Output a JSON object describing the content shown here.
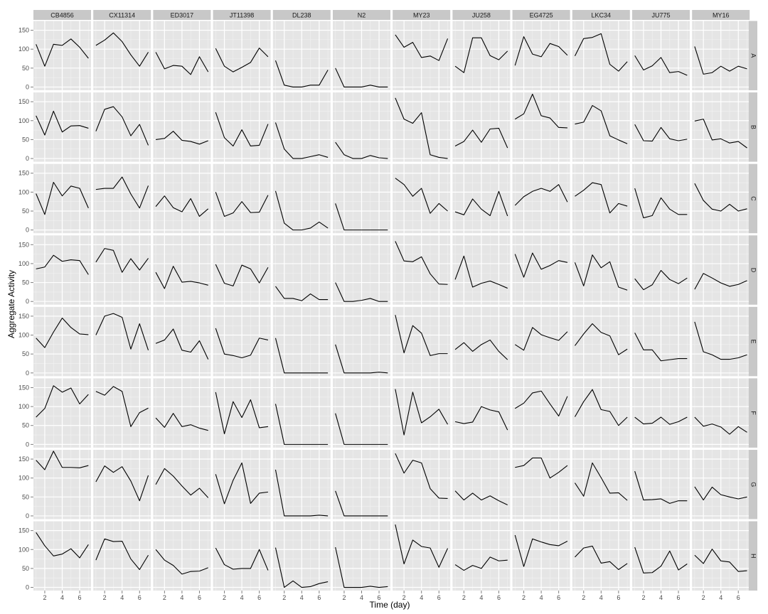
{
  "chart_data": {
    "type": "line",
    "xlabel": "Time (day)",
    "ylabel": "Aggregate Activity",
    "xlim": [
      1,
      7
    ],
    "ylim": [
      0,
      150
    ],
    "x_ticks": [
      2,
      4,
      6
    ],
    "y_ticks": [
      0,
      50,
      100,
      150
    ],
    "grid": true,
    "x": [
      1,
      2,
      3,
      4,
      5,
      6,
      7
    ],
    "columns": [
      "CB4856",
      "CX11314",
      "ED3017",
      "JT11398",
      "DL238",
      "N2",
      "MY23",
      "JU258",
      "EG4725",
      "LKC34",
      "JU775",
      "MY16"
    ],
    "rows": [
      "A",
      "B",
      "C",
      "D",
      "E",
      "F",
      "G",
      "H"
    ],
    "series": {
      "A": [
        [
          113,
          55,
          113,
          110,
          127,
          105,
          76
        ],
        [
          110,
          124,
          143,
          120,
          85,
          55,
          92
        ],
        [
          92,
          48,
          57,
          55,
          33,
          80,
          40
        ],
        [
          102,
          55,
          40,
          52,
          65,
          103,
          80
        ],
        [
          70,
          5,
          0,
          0,
          5,
          5,
          45
        ],
        [
          50,
          0,
          0,
          0,
          5,
          0,
          0
        ],
        [
          138,
          105,
          118,
          78,
          82,
          70,
          128
        ],
        [
          55,
          38,
          130,
          130,
          83,
          72,
          95
        ],
        [
          57,
          133,
          87,
          80,
          115,
          107,
          84
        ],
        [
          82,
          128,
          131,
          141,
          60,
          42,
          67
        ],
        [
          83,
          45,
          56,
          78,
          38,
          41,
          31
        ],
        [
          107,
          34,
          38,
          55,
          42,
          55,
          48
        ]
      ],
      "B": [
        [
          113,
          62,
          125,
          70,
          86,
          87,
          80
        ],
        [
          72,
          130,
          137,
          110,
          60,
          90,
          35
        ],
        [
          50,
          53,
          72,
          48,
          45,
          38,
          47
        ],
        [
          122,
          55,
          33,
          76,
          33,
          35,
          91
        ],
        [
          95,
          25,
          0,
          0,
          5,
          10,
          3
        ],
        [
          43,
          10,
          0,
          0,
          8,
          2,
          0
        ],
        [
          160,
          104,
          93,
          121,
          10,
          3,
          0
        ],
        [
          33,
          45,
          75,
          43,
          78,
          80,
          28
        ],
        [
          104,
          118,
          170,
          113,
          107,
          82,
          81
        ],
        [
          91,
          96,
          140,
          126,
          60,
          49,
          39
        ],
        [
          90,
          47,
          46,
          82,
          52,
          47,
          51
        ],
        [
          99,
          104,
          49,
          52,
          41,
          45,
          28
        ]
      ],
      "C": [
        [
          96,
          41,
          126,
          90,
          116,
          110,
          58
        ],
        [
          107,
          110,
          110,
          140,
          95,
          58,
          117
        ],
        [
          62,
          90,
          59,
          48,
          83,
          36,
          56
        ],
        [
          100,
          36,
          45,
          75,
          46,
          47,
          92
        ],
        [
          103,
          18,
          0,
          0,
          5,
          21,
          5
        ],
        [
          70,
          0,
          0,
          0,
          0,
          0,
          0
        ],
        [
          137,
          120,
          89,
          110,
          44,
          70,
          50
        ],
        [
          48,
          40,
          82,
          55,
          38,
          102,
          37
        ],
        [
          65,
          88,
          102,
          110,
          102,
          120,
          74
        ],
        [
          89,
          105,
          125,
          120,
          45,
          70,
          63
        ],
        [
          110,
          32,
          38,
          85,
          55,
          41,
          41
        ],
        [
          123,
          78,
          55,
          50,
          68,
          50,
          56
        ]
      ],
      "D": [
        [
          86,
          91,
          122,
          106,
          110,
          108,
          71
        ],
        [
          104,
          140,
          135,
          77,
          113,
          83,
          114
        ],
        [
          77,
          34,
          93,
          51,
          53,
          49,
          43
        ],
        [
          98,
          48,
          41,
          96,
          86,
          49,
          90
        ],
        [
          40,
          8,
          8,
          2,
          20,
          5,
          5
        ],
        [
          50,
          0,
          0,
          3,
          8,
          0,
          0
        ],
        [
          159,
          107,
          105,
          118,
          73,
          46,
          45
        ],
        [
          58,
          120,
          38,
          48,
          54,
          45,
          35
        ],
        [
          125,
          64,
          128,
          85,
          95,
          108,
          103
        ],
        [
          103,
          41,
          123,
          89,
          105,
          38,
          30
        ],
        [
          60,
          31,
          44,
          82,
          58,
          47,
          62
        ],
        [
          32,
          74,
          62,
          49,
          40,
          45,
          55
        ]
      ],
      "E": [
        [
          92,
          67,
          108,
          145,
          120,
          103,
          101
        ],
        [
          100,
          150,
          157,
          147,
          63,
          130,
          60
        ],
        [
          78,
          87,
          116,
          60,
          55,
          85,
          36
        ],
        [
          118,
          50,
          46,
          40,
          47,
          92,
          87
        ],
        [
          92,
          0,
          0,
          0,
          0,
          0,
          0
        ],
        [
          75,
          0,
          0,
          0,
          0,
          2,
          0
        ],
        [
          153,
          53,
          125,
          105,
          46,
          51,
          51
        ],
        [
          62,
          80,
          57,
          75,
          87,
          57,
          35
        ],
        [
          75,
          60,
          120,
          101,
          93,
          86,
          109
        ],
        [
          72,
          103,
          130,
          107,
          98,
          48,
          63
        ],
        [
          106,
          61,
          61,
          32,
          35,
          38,
          38
        ],
        [
          135,
          56,
          48,
          36,
          36,
          40,
          48
        ]
      ],
      "F": [
        [
          72,
          95,
          155,
          138,
          149,
          107,
          132
        ],
        [
          140,
          130,
          153,
          140,
          47,
          84,
          96
        ],
        [
          70,
          45,
          82,
          47,
          52,
          43,
          37
        ],
        [
          138,
          28,
          113,
          71,
          118,
          44,
          47
        ],
        [
          107,
          0,
          0,
          0,
          0,
          0,
          0
        ],
        [
          82,
          0,
          0,
          0,
          0,
          0,
          0
        ],
        [
          146,
          25,
          138,
          57,
          73,
          93,
          53
        ],
        [
          60,
          55,
          59,
          100,
          91,
          86,
          38
        ],
        [
          95,
          109,
          136,
          141,
          107,
          75,
          127
        ],
        [
          73,
          113,
          145,
          92,
          87,
          50,
          72
        ],
        [
          72,
          54,
          56,
          72,
          53,
          60,
          72
        ],
        [
          72,
          48,
          54,
          46,
          27,
          47,
          32
        ]
      ],
      "G": [
        [
          147,
          122,
          171,
          128,
          128,
          127,
          133
        ],
        [
          90,
          132,
          115,
          130,
          92,
          40,
          107
        ],
        [
          83,
          125,
          105,
          79,
          55,
          73,
          48
        ],
        [
          110,
          32,
          94,
          140,
          33,
          60,
          63
        ],
        [
          122,
          0,
          0,
          0,
          0,
          2,
          0
        ],
        [
          66,
          0,
          0,
          0,
          0,
          0,
          0
        ],
        [
          165,
          113,
          147,
          140,
          72,
          47,
          46
        ],
        [
          66,
          42,
          60,
          42,
          53,
          40,
          29
        ],
        [
          128,
          133,
          153,
          153,
          100,
          115,
          133
        ],
        [
          87,
          52,
          140,
          101,
          60,
          61,
          41
        ],
        [
          118,
          42,
          43,
          45,
          33,
          40,
          40
        ],
        [
          77,
          42,
          76,
          56,
          50,
          45,
          50
        ]
      ],
      "H": [
        [
          145,
          110,
          83,
          88,
          102,
          78,
          113
        ],
        [
          72,
          128,
          121,
          122,
          75,
          47,
          85
        ],
        [
          100,
          72,
          58,
          35,
          42,
          43,
          52
        ],
        [
          104,
          60,
          48,
          50,
          50,
          100,
          45
        ],
        [
          105,
          0,
          17,
          0,
          2,
          10,
          15
        ],
        [
          106,
          0,
          0,
          0,
          3,
          0,
          2
        ],
        [
          166,
          62,
          125,
          108,
          104,
          53,
          103
        ],
        [
          60,
          45,
          58,
          50,
          80,
          70,
          72
        ],
        [
          138,
          55,
          128,
          120,
          113,
          110,
          122
        ],
        [
          80,
          104,
          109,
          64,
          68,
          47,
          63
        ],
        [
          106,
          38,
          39,
          56,
          96,
          46,
          62
        ],
        [
          85,
          63,
          101,
          70,
          67,
          42,
          44
        ]
      ]
    }
  }
}
